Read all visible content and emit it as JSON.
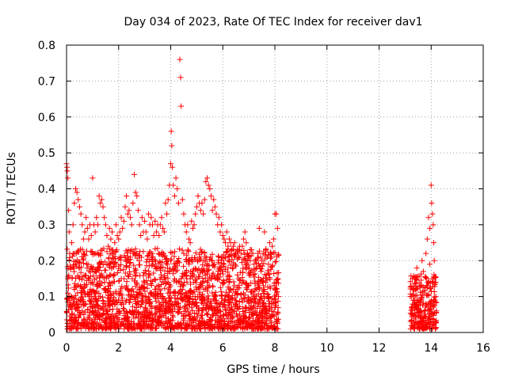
{
  "chart_data": {
    "type": "scatter",
    "title": "Day 034 of 2023, Rate Of TEC Index for receiver dav1",
    "xlabel": "GPS time / hours",
    "ylabel": "ROTI / TECUs",
    "xlim": [
      0,
      16
    ],
    "ylim": [
      0,
      0.8
    ],
    "x_ticks": [
      0,
      2,
      4,
      6,
      8,
      10,
      12,
      14,
      16
    ],
    "y_ticks": [
      0,
      0.1,
      0.2,
      0.3,
      0.4,
      0.5,
      0.6,
      0.7,
      0.8
    ],
    "x_tick_labels": [
      "0",
      "2",
      "4",
      "6",
      "8",
      "10",
      "12",
      "14",
      "16"
    ],
    "y_tick_labels": [
      "0",
      "0.1",
      "0.2",
      "0.3",
      "0.4",
      "0.5",
      "0.6",
      "0.7",
      "0.8"
    ],
    "grid": true,
    "marker": "+",
    "color": "#ff0000",
    "series": [
      {
        "points": [
          [
            0.0,
            0.47
          ],
          [
            0.02,
            0.46
          ],
          [
            0.03,
            0.45
          ],
          [
            0.05,
            0.43
          ],
          [
            0.08,
            0.34
          ],
          [
            0.1,
            0.28
          ],
          [
            0.12,
            0.22
          ],
          [
            0.15,
            0.18
          ],
          [
            0.2,
            0.25
          ],
          [
            0.25,
            0.3
          ],
          [
            0.3,
            0.36
          ],
          [
            0.35,
            0.4
          ],
          [
            0.4,
            0.39
          ],
          [
            0.45,
            0.37
          ],
          [
            0.5,
            0.35
          ],
          [
            0.55,
            0.33
          ],
          [
            0.6,
            0.3
          ],
          [
            0.65,
            0.26
          ],
          [
            0.7,
            0.28
          ],
          [
            0.75,
            0.32
          ],
          [
            0.8,
            0.29
          ],
          [
            0.85,
            0.26
          ],
          [
            0.9,
            0.3
          ],
          [
            0.95,
            0.27
          ],
          [
            1.0,
            0.43
          ],
          [
            1.05,
            0.3
          ],
          [
            1.1,
            0.28
          ],
          [
            1.15,
            0.32
          ],
          [
            1.2,
            0.3
          ],
          [
            1.25,
            0.38
          ],
          [
            1.3,
            0.36
          ],
          [
            1.35,
            0.37
          ],
          [
            1.4,
            0.35
          ],
          [
            1.45,
            0.32
          ],
          [
            1.5,
            0.3
          ],
          [
            1.55,
            0.27
          ],
          [
            1.6,
            0.24
          ],
          [
            1.65,
            0.29
          ],
          [
            1.7,
            0.26
          ],
          [
            1.75,
            0.28
          ],
          [
            1.8,
            0.22
          ],
          [
            1.85,
            0.25
          ],
          [
            1.9,
            0.3
          ],
          [
            1.95,
            0.27
          ],
          [
            2.0,
            0.26
          ],
          [
            2.05,
            0.28
          ],
          [
            2.1,
            0.32
          ],
          [
            2.15,
            0.29
          ],
          [
            2.2,
            0.31
          ],
          [
            2.25,
            0.35
          ],
          [
            2.3,
            0.38
          ],
          [
            2.35,
            0.33
          ],
          [
            2.4,
            0.34
          ],
          [
            2.45,
            0.32
          ],
          [
            2.5,
            0.3
          ],
          [
            2.55,
            0.36
          ],
          [
            2.6,
            0.44
          ],
          [
            2.65,
            0.39
          ],
          [
            2.7,
            0.38
          ],
          [
            2.75,
            0.34
          ],
          [
            2.8,
            0.3
          ],
          [
            2.85,
            0.27
          ],
          [
            2.9,
            0.32
          ],
          [
            2.95,
            0.28
          ],
          [
            3.0,
            0.31
          ],
          [
            3.05,
            0.28
          ],
          [
            3.1,
            0.26
          ],
          [
            3.15,
            0.33
          ],
          [
            3.2,
            0.3
          ],
          [
            3.25,
            0.32
          ],
          [
            3.3,
            0.3
          ],
          [
            3.35,
            0.27
          ],
          [
            3.4,
            0.31
          ],
          [
            3.45,
            0.28
          ],
          [
            3.5,
            0.3
          ],
          [
            3.55,
            0.27
          ],
          [
            3.6,
            0.3
          ],
          [
            3.65,
            0.32
          ],
          [
            3.7,
            0.29
          ],
          [
            3.75,
            0.28
          ],
          [
            3.8,
            0.36
          ],
          [
            3.85,
            0.33
          ],
          [
            3.9,
            0.37
          ],
          [
            3.95,
            0.41
          ],
          [
            4.0,
            0.47
          ],
          [
            4.02,
            0.56
          ],
          [
            4.04,
            0.52
          ],
          [
            4.06,
            0.46
          ],
          [
            4.1,
            0.41
          ],
          [
            4.15,
            0.38
          ],
          [
            4.2,
            0.43
          ],
          [
            4.25,
            0.4
          ],
          [
            4.3,
            0.36
          ],
          [
            4.35,
            0.76
          ],
          [
            4.38,
            0.71
          ],
          [
            4.4,
            0.63
          ],
          [
            4.45,
            0.37
          ],
          [
            4.5,
            0.33
          ],
          [
            4.55,
            0.3
          ],
          [
            4.6,
            0.28
          ],
          [
            4.65,
            0.3
          ],
          [
            4.7,
            0.26
          ],
          [
            4.75,
            0.25
          ],
          [
            4.8,
            0.31
          ],
          [
            4.85,
            0.29
          ],
          [
            4.9,
            0.3
          ],
          [
            4.95,
            0.33
          ],
          [
            5.0,
            0.35
          ],
          [
            5.05,
            0.38
          ],
          [
            5.1,
            0.36
          ],
          [
            5.15,
            0.34
          ],
          [
            5.2,
            0.36
          ],
          [
            5.25,
            0.33
          ],
          [
            5.3,
            0.37
          ],
          [
            5.35,
            0.42
          ],
          [
            5.4,
            0.43
          ],
          [
            5.45,
            0.41
          ],
          [
            5.5,
            0.4
          ],
          [
            5.55,
            0.38
          ],
          [
            5.6,
            0.34
          ],
          [
            5.65,
            0.37
          ],
          [
            5.7,
            0.35
          ],
          [
            5.75,
            0.33
          ],
          [
            5.8,
            0.3
          ],
          [
            5.85,
            0.32
          ],
          [
            5.9,
            0.28
          ],
          [
            5.95,
            0.3
          ],
          [
            6.0,
            0.27
          ],
          [
            6.05,
            0.26
          ],
          [
            6.1,
            0.25
          ],
          [
            6.15,
            0.28
          ],
          [
            6.2,
            0.24
          ],
          [
            6.25,
            0.26
          ],
          [
            6.3,
            0.25
          ],
          [
            6.35,
            0.23
          ],
          [
            6.4,
            0.24
          ],
          [
            6.45,
            0.25
          ],
          [
            6.5,
            0.22
          ],
          [
            6.55,
            0.23
          ],
          [
            6.6,
            0.21
          ],
          [
            6.65,
            0.24
          ],
          [
            6.7,
            0.22
          ],
          [
            6.75,
            0.24
          ],
          [
            6.8,
            0.26
          ],
          [
            6.85,
            0.28
          ],
          [
            6.9,
            0.25
          ],
          [
            6.95,
            0.22
          ],
          [
            7.0,
            0.21
          ],
          [
            7.05,
            0.2
          ],
          [
            7.1,
            0.23
          ],
          [
            7.15,
            0.22
          ],
          [
            7.2,
            0.19
          ],
          [
            7.25,
            0.2
          ],
          [
            7.3,
            0.18
          ],
          [
            7.35,
            0.22
          ],
          [
            7.4,
            0.29
          ],
          [
            7.45,
            0.21
          ],
          [
            7.5,
            0.2
          ],
          [
            7.55,
            0.22
          ],
          [
            7.6,
            0.28
          ],
          [
            7.65,
            0.23
          ],
          [
            7.7,
            0.21
          ],
          [
            7.75,
            0.19
          ],
          [
            7.8,
            0.25
          ],
          [
            7.85,
            0.22
          ],
          [
            7.9,
            0.24
          ],
          [
            7.95,
            0.26
          ],
          [
            8.0,
            0.33
          ],
          [
            8.05,
            0.33
          ],
          [
            8.1,
            0.29
          ],
          [
            8.12,
            0.15
          ],
          [
            8.14,
            0.1
          ],
          [
            0.1,
            0.1
          ],
          [
            0.2,
            0.05
          ],
          [
            0.3,
            0.12
          ],
          [
            0.4,
            0.08
          ],
          [
            0.5,
            0.15
          ],
          [
            0.6,
            0.06
          ],
          [
            0.7,
            0.11
          ],
          [
            0.8,
            0.03
          ],
          [
            0.9,
            0.09
          ],
          [
            1.0,
            0.14
          ],
          [
            1.1,
            0.07
          ],
          [
            1.2,
            0.18
          ],
          [
            1.3,
            0.1
          ],
          [
            1.4,
            0.05
          ],
          [
            1.5,
            0.12
          ],
          [
            1.6,
            0.08
          ],
          [
            1.7,
            0.16
          ],
          [
            1.8,
            0.04
          ],
          [
            1.9,
            0.11
          ],
          [
            2.0,
            0.09
          ],
          [
            2.1,
            0.15
          ],
          [
            2.2,
            0.06
          ],
          [
            2.3,
            0.13
          ],
          [
            2.4,
            0.03
          ],
          [
            2.5,
            0.1
          ],
          [
            2.6,
            0.17
          ],
          [
            2.7,
            0.08
          ],
          [
            2.8,
            0.12
          ],
          [
            2.9,
            0.05
          ],
          [
            3.0,
            0.14
          ],
          [
            3.1,
            0.09
          ],
          [
            3.2,
            0.16
          ],
          [
            3.3,
            0.04
          ],
          [
            3.4,
            0.12
          ],
          [
            3.5,
            0.07
          ],
          [
            3.6,
            0.18
          ],
          [
            3.7,
            0.1
          ],
          [
            3.8,
            0.06
          ],
          [
            3.9,
            0.14
          ],
          [
            4.0,
            0.2
          ],
          [
            4.1,
            0.11
          ],
          [
            4.2,
            0.17
          ],
          [
            4.3,
            0.08
          ],
          [
            4.4,
            0.15
          ],
          [
            4.5,
            0.22
          ],
          [
            4.6,
            0.1
          ],
          [
            4.7,
            0.19
          ],
          [
            4.8,
            0.07
          ],
          [
            4.9,
            0.16
          ],
          [
            5.0,
            0.12
          ],
          [
            5.1,
            0.21
          ],
          [
            5.2,
            0.09
          ],
          [
            5.3,
            0.17
          ],
          [
            5.4,
            0.05
          ],
          [
            5.5,
            0.13
          ],
          [
            5.6,
            0.2
          ],
          [
            5.7,
            0.1
          ],
          [
            5.8,
            0.16
          ],
          [
            5.9,
            0.06
          ],
          [
            6.0,
            0.14
          ],
          [
            6.1,
            0.09
          ],
          [
            6.2,
            0.18
          ],
          [
            6.3,
            0.05
          ],
          [
            6.4,
            0.12
          ],
          [
            6.5,
            0.08
          ],
          [
            6.6,
            0.15
          ],
          [
            6.7,
            0.04
          ],
          [
            6.8,
            0.11
          ],
          [
            6.9,
            0.07
          ],
          [
            7.0,
            0.13
          ],
          [
            7.1,
            0.05
          ],
          [
            7.2,
            0.1
          ],
          [
            7.3,
            0.03
          ],
          [
            7.4,
            0.09
          ],
          [
            7.5,
            0.06
          ],
          [
            7.6,
            0.12
          ],
          [
            7.7,
            0.04
          ],
          [
            7.8,
            0.08
          ],
          [
            7.9,
            0.05
          ],
          [
            8.0,
            0.07
          ],
          [
            8.1,
            0.03
          ],
          [
            13.2,
            0.1
          ],
          [
            13.25,
            0.07
          ],
          [
            13.3,
            0.05
          ],
          [
            13.35,
            0.12
          ],
          [
            13.4,
            0.15
          ],
          [
            13.45,
            0.18
          ],
          [
            13.5,
            0.09
          ],
          [
            13.55,
            0.06
          ],
          [
            13.6,
            0.13
          ],
          [
            13.65,
            0.2
          ],
          [
            13.7,
            0.17
          ],
          [
            13.75,
            0.11
          ],
          [
            13.8,
            0.22
          ],
          [
            13.85,
            0.26
          ],
          [
            13.9,
            0.32
          ],
          [
            13.95,
            0.29
          ],
          [
            14.0,
            0.41
          ],
          [
            14.02,
            0.36
          ],
          [
            14.05,
            0.33
          ],
          [
            14.08,
            0.3
          ],
          [
            14.1,
            0.25
          ],
          [
            14.12,
            0.2
          ],
          [
            14.15,
            0.14
          ],
          [
            14.18,
            0.1
          ],
          [
            14.2,
            0.06
          ],
          [
            13.9,
            0.08
          ],
          [
            14.0,
            0.05
          ],
          [
            14.1,
            0.03
          ],
          [
            13.5,
            0.03
          ],
          [
            13.7,
            0.04
          ],
          [
            13.8,
            0.08
          ],
          [
            14.05,
            0.15
          ],
          [
            13.95,
            0.19
          ],
          [
            13.85,
            0.13
          ],
          [
            13.6,
            0.09
          ]
        ],
        "band": {
          "segments": [
            {
              "x_range": [
                0.0,
                8.15
              ],
              "y_range": [
                0.01,
                0.17
              ]
            },
            {
              "x_range": [
                13.2,
                14.2
              ],
              "y_range": [
                0.01,
                0.12
              ]
            }
          ]
        }
      }
    ]
  }
}
